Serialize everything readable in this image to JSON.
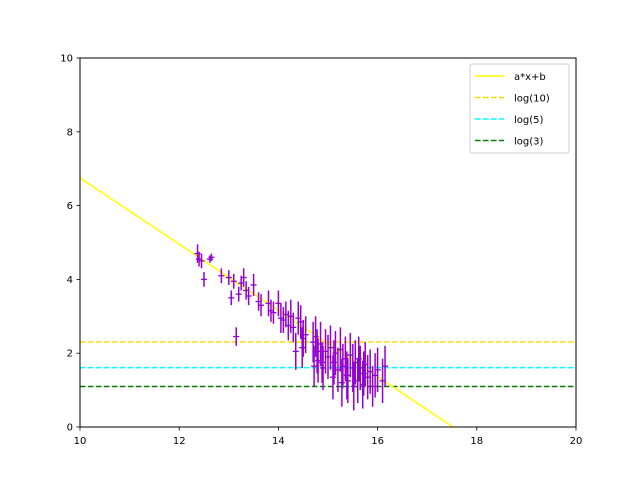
{
  "chart_data": {
    "type": "scatter",
    "title": "",
    "xlabel": "",
    "ylabel": "",
    "xlim": [
      10,
      20
    ],
    "ylim": [
      0,
      10
    ],
    "xticks": [
      "10",
      "12",
      "14",
      "16",
      "18",
      "20"
    ],
    "yticks": [
      "0",
      "2",
      "4",
      "6",
      "8",
      "10"
    ],
    "grid": false,
    "legend_position": "top-right",
    "legend": [
      "a*x+b",
      "log(10)",
      "log(5)",
      "log(3)"
    ],
    "colors": {
      "points": "#9400d3",
      "fit": "#ffff00",
      "log10": "#ffd700",
      "log5": "#00ffff",
      "log3": "#008000"
    },
    "series": [
      {
        "name": "a*x+b",
        "kind": "line",
        "x": [
          10.0,
          17.52
        ],
        "y": [
          6.75,
          0.0
        ]
      }
    ],
    "hlines": [
      {
        "name": "log(10)",
        "y": 2.303,
        "style": "dashed"
      },
      {
        "name": "log(5)",
        "y": 1.609,
        "style": "dashed"
      },
      {
        "name": "log(3)",
        "y": 1.099,
        "style": "dashed"
      }
    ],
    "points": {
      "x": [
        12.37,
        12.4,
        12.45,
        12.5,
        12.62,
        12.65,
        12.85,
        13.0,
        13.05,
        13.1,
        13.15,
        13.2,
        13.25,
        13.3,
        13.35,
        13.4,
        13.5,
        13.6,
        13.65,
        13.8,
        13.85,
        13.9,
        14.0,
        14.05,
        14.1,
        14.15,
        14.2,
        14.25,
        14.3,
        14.35,
        14.4,
        14.45,
        14.48,
        14.5,
        14.55,
        14.7,
        14.72,
        14.75,
        14.78,
        14.8,
        14.85,
        14.88,
        14.9,
        14.95,
        15.0,
        15.05,
        15.1,
        15.12,
        15.15,
        15.2,
        15.25,
        15.28,
        15.3,
        15.35,
        15.38,
        15.4,
        15.45,
        15.5,
        15.52,
        15.55,
        15.6,
        15.62,
        15.65,
        15.7,
        15.72,
        15.75,
        15.8,
        15.85,
        15.9,
        15.95,
        16.0,
        16.1,
        16.15
      ],
      "y": [
        4.7,
        4.55,
        4.5,
        4.0,
        4.55,
        4.6,
        4.1,
        4.05,
        3.5,
        3.95,
        2.45,
        3.6,
        3.9,
        4.05,
        3.7,
        3.55,
        3.85,
        3.4,
        3.3,
        3.35,
        3.15,
        3.1,
        3.35,
        2.95,
        2.9,
        3.05,
        2.75,
        3.0,
        2.7,
        2.05,
        2.95,
        2.85,
        2.15,
        2.4,
        2.5,
        2.3,
        1.65,
        2.45,
        2.05,
        1.8,
        2.25,
        1.75,
        1.6,
        2.05,
        1.9,
        2.15,
        1.35,
        1.75,
        2.0,
        1.55,
        2.1,
        1.2,
        1.65,
        1.85,
        1.4,
        1.25,
        1.95,
        1.6,
        1.1,
        1.75,
        1.25,
        1.85,
        1.6,
        1.15,
        1.45,
        1.7,
        1.35,
        1.5,
        1.1,
        1.4,
        1.55,
        1.25,
        1.65
      ],
      "yerr": [
        0.25,
        0.2,
        0.2,
        0.2,
        0.1,
        0.1,
        0.2,
        0.2,
        0.2,
        0.2,
        0.25,
        0.2,
        0.2,
        0.25,
        0.25,
        0.25,
        0.3,
        0.25,
        0.3,
        0.35,
        0.3,
        0.3,
        0.35,
        0.4,
        0.35,
        0.35,
        0.4,
        0.45,
        0.4,
        0.5,
        0.45,
        0.45,
        0.55,
        0.5,
        0.5,
        0.55,
        0.55,
        0.55,
        0.6,
        0.6,
        0.6,
        0.55,
        0.6,
        0.6,
        0.6,
        0.6,
        0.6,
        0.6,
        0.6,
        0.6,
        0.6,
        0.65,
        0.6,
        0.6,
        0.65,
        0.6,
        0.6,
        0.65,
        0.65,
        0.6,
        0.6,
        0.6,
        0.6,
        0.65,
        0.6,
        0.6,
        0.6,
        0.6,
        0.55,
        0.6,
        0.6,
        0.6,
        0.55
      ]
    }
  }
}
